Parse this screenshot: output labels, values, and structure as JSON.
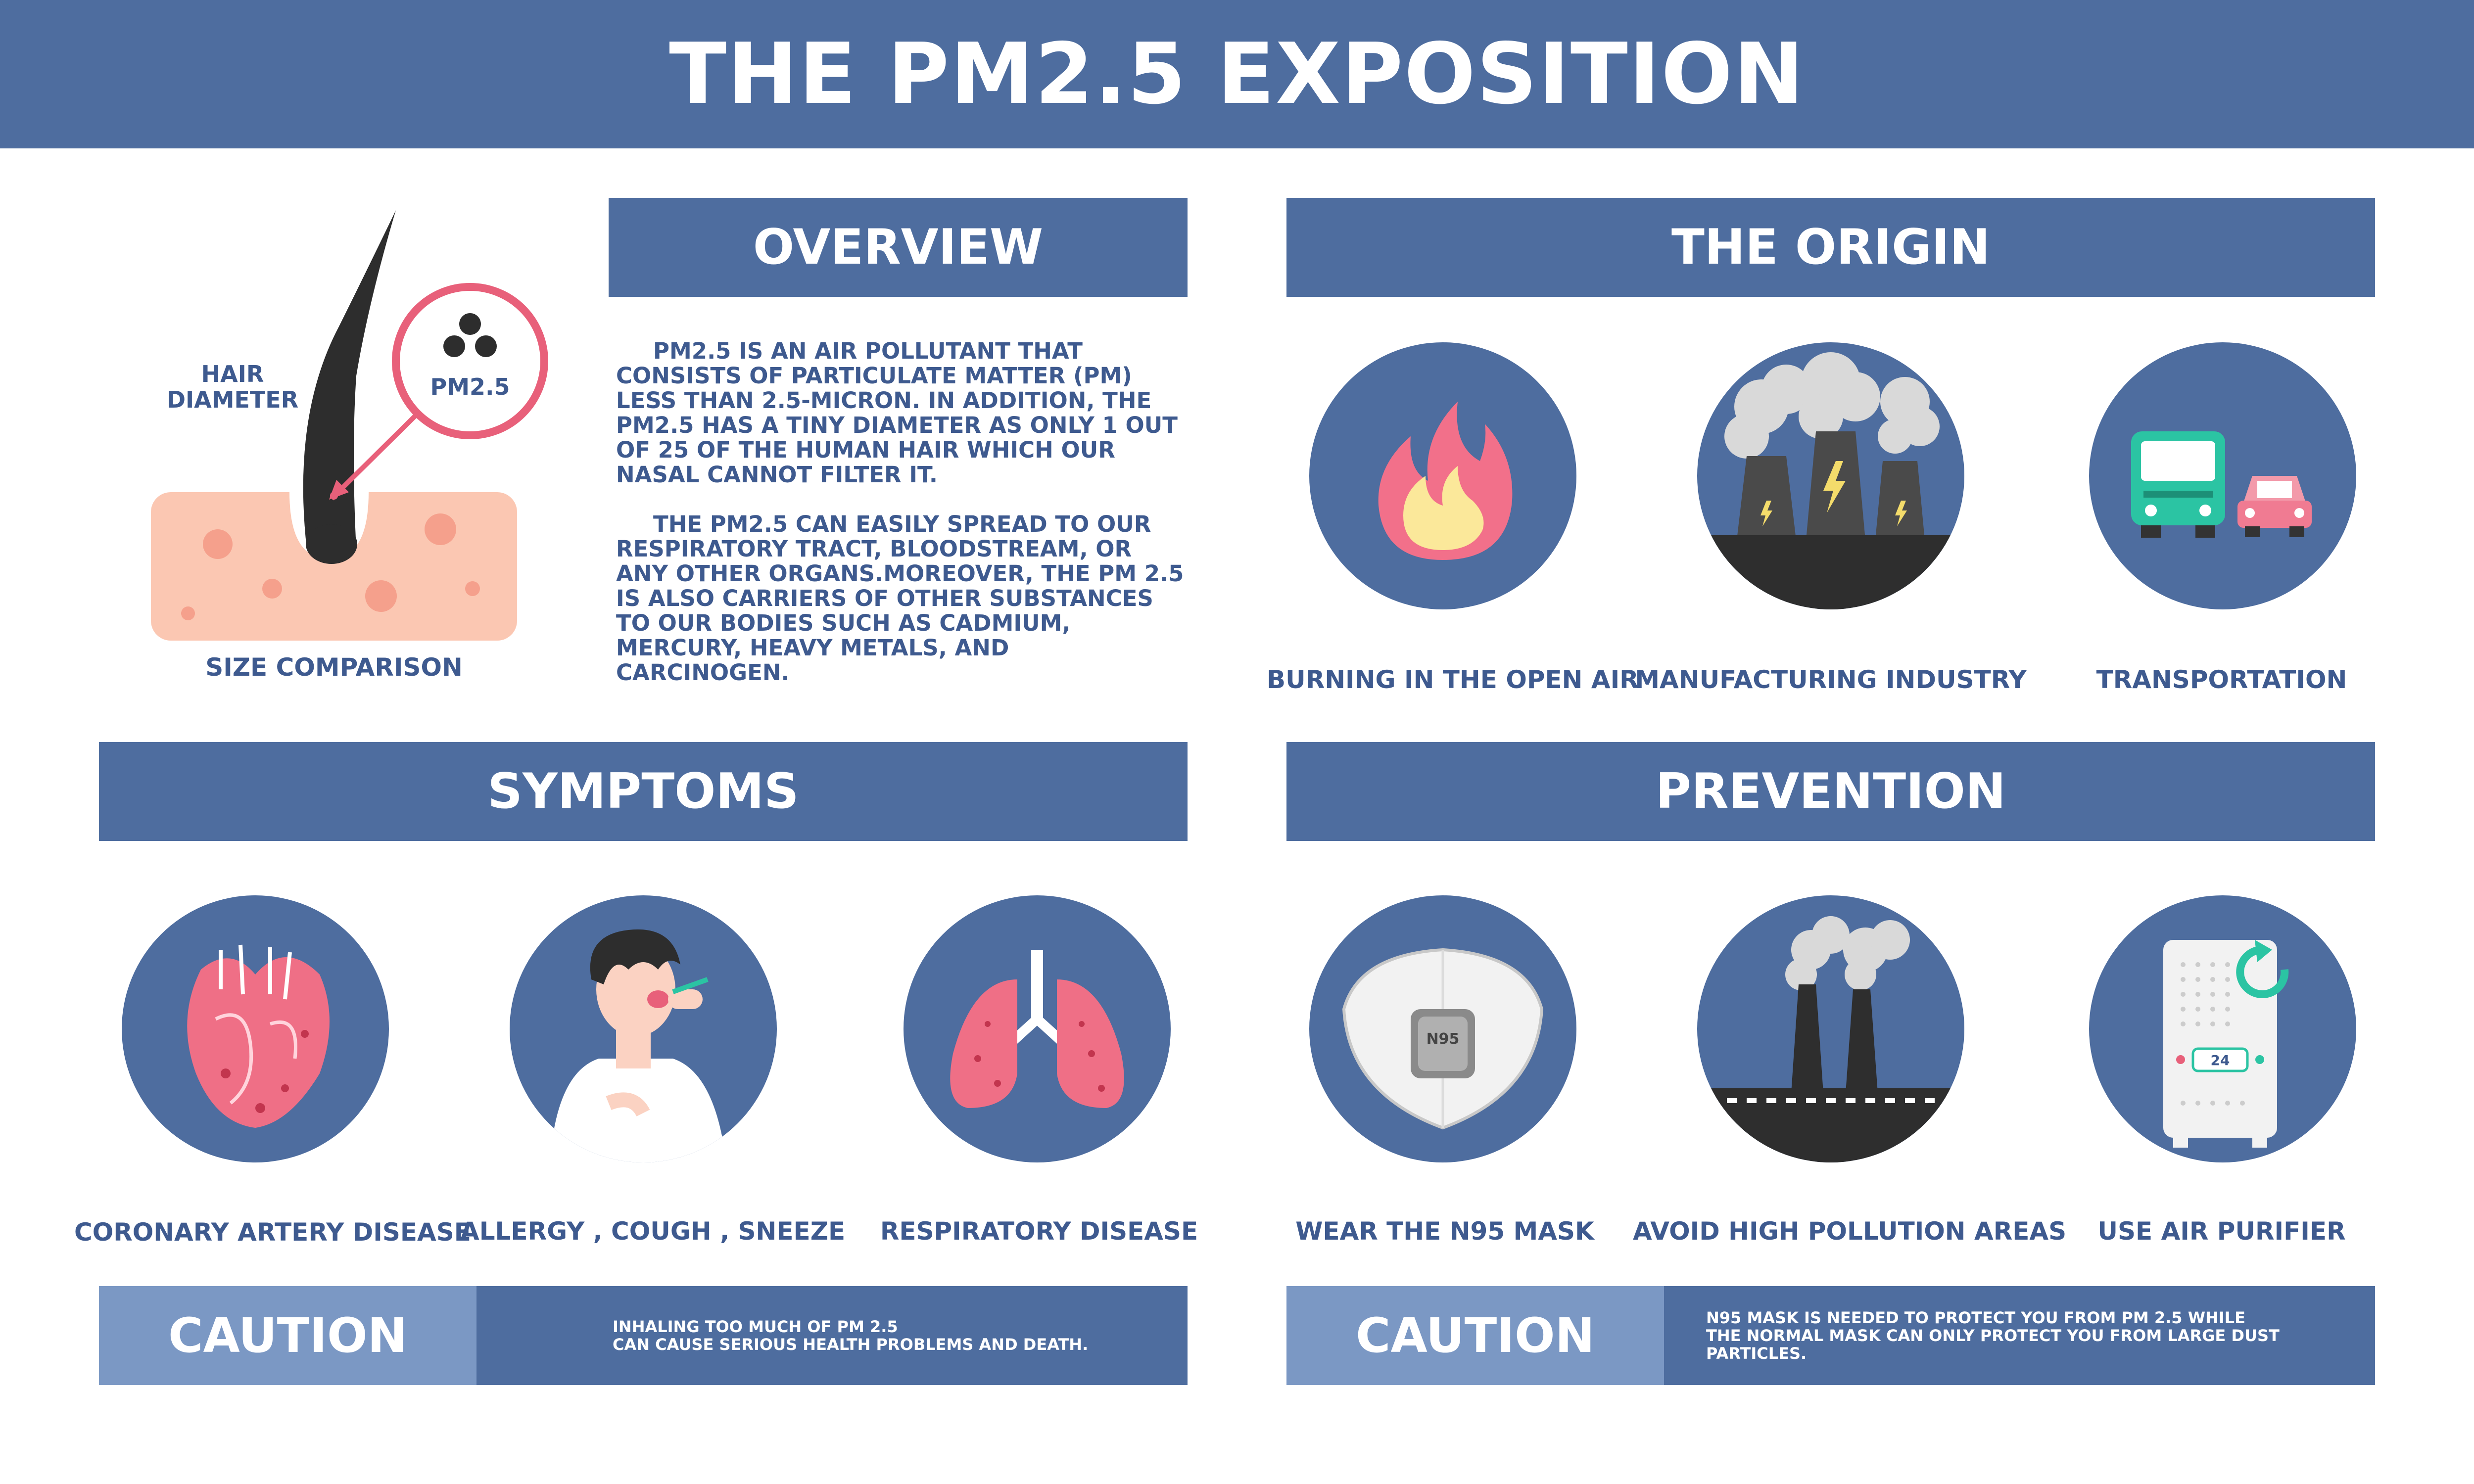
{
  "title": "THE PM2.5 EXPOSITION",
  "overview": {
    "heading": "OVERVIEW",
    "hair_label_1": "HAIR",
    "hair_label_2": "DIAMETER",
    "pm_label": "PM2.5",
    "size_comparison": "SIZE COMPARISON",
    "paragraph_1": "PM2.5 IS AN AIR POLLUTANT THAT CONSISTS OF PARTICULATE MATTER (PM) LESS THAN 2.5-MICRON. IN ADDITION, THE PM2.5 HAS A TINY DIAMETER AS ONLY 1 OUT OF 25 OF THE HUMAN HAIR WHICH OUR NASAL CANNOT FILTER IT.",
    "paragraph_2": "THE PM2.5 CAN EASILY SPREAD TO OUR RESPIRATORY TRACT, BLOODSTREAM, OR ANY OTHER ORGANS.MOREOVER, THE PM 2.5 IS ALSO CARRIERS OF OTHER SUBSTANCES TO OUR BODIES SUCH AS CADMIUM, MERCURY, HEAVY METALS, AND CARCINOGEN."
  },
  "origin": {
    "heading": "THE ORIGIN",
    "items": [
      {
        "label": "BURNING IN THE OPEN AIR",
        "icon": "fire-icon"
      },
      {
        "label": "MANUFACTURING INDUSTRY",
        "icon": "factory-icon"
      },
      {
        "label": "TRANSPORTATION",
        "icon": "vehicles-icon"
      }
    ]
  },
  "symptoms": {
    "heading": "SYMPTOMS",
    "items": [
      {
        "label": "CORONARY ARTERY DISEASE",
        "icon": "heart-icon"
      },
      {
        "label": "ALLERGY , COUGH , SNEEZE",
        "icon": "coughing-person-icon"
      },
      {
        "label": "RESPIRATORY DISEASE",
        "icon": "lungs-icon"
      }
    ],
    "caution_label": "CAUTION",
    "caution_line_1": "INHALING TOO MUCH OF PM 2.5",
    "caution_line_2": "CAN CAUSE SERIOUS HEALTH PROBLEMS AND DEATH."
  },
  "prevention": {
    "heading": "PREVENTION",
    "items": [
      {
        "label": "WEAR THE N95 MASK",
        "icon": "n95-mask-icon",
        "mask_text": "N95"
      },
      {
        "label": "AVOID HIGH POLLUTION AREAS",
        "icon": "smokestack-icon"
      },
      {
        "label": "USE AIR PURIFIER",
        "icon": "air-purifier-icon",
        "display_value": "24"
      }
    ],
    "caution_label": "CAUTION",
    "caution_line_1": "N95 MASK IS NEEDED TO PROTECT YOU FROM PM 2.5 WHILE",
    "caution_line_2": "THE NORMAL MASK CAN ONLY PROTECT YOU FROM LARGE DUST PARTICLES."
  },
  "colors": {
    "banner": "#4e6d9f",
    "caution_light": "#7b98c4",
    "text": "#3e5a8f",
    "skin": "#fbc7b2",
    "accent_pink": "#e8607a"
  }
}
